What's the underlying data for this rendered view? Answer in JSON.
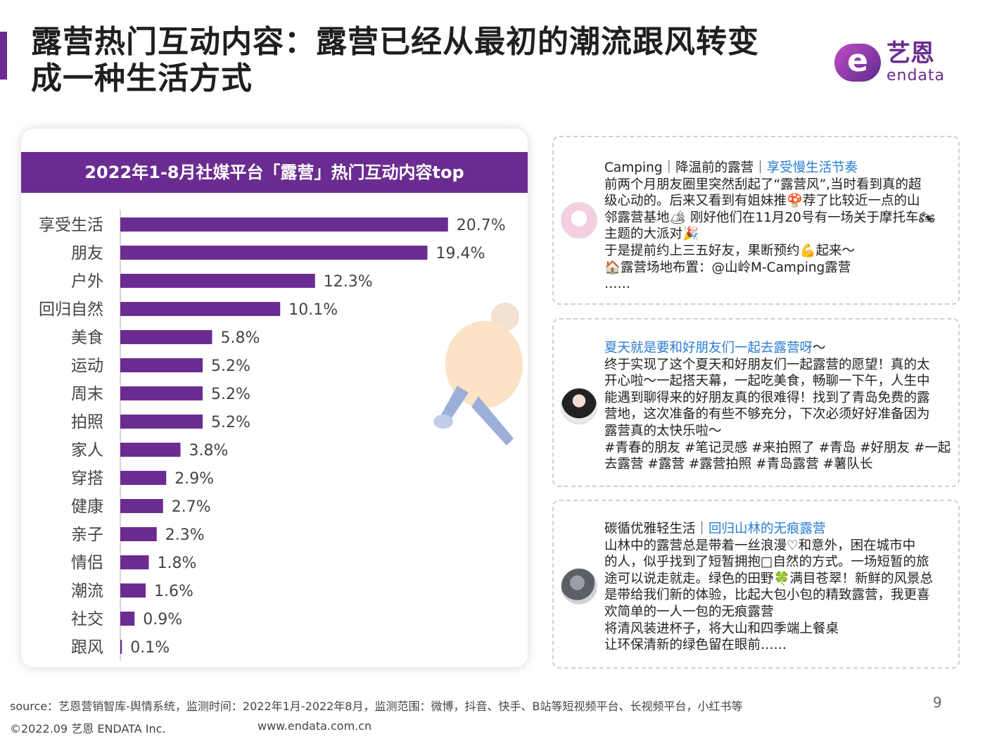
{
  "page": {
    "title_lines": [
      "露营热门互动内容：露营已经从最初的潮流跟风转变",
      "成一种生活方式"
    ],
    "logo": {
      "cn": "艺恩",
      "en": "endata",
      "mark": "e"
    },
    "page_number": "9"
  },
  "colors": {
    "accent": "#6b2c91",
    "bar": "#6b2c91",
    "link": "#2a7dd1"
  },
  "chart_data": {
    "type": "bar",
    "orientation": "horizontal",
    "title": "2022年1-8月社媒平台「露营」热门互动内容top",
    "categories": [
      "享受生活",
      "朋友",
      "户外",
      "回归自然",
      "美食",
      "运动",
      "周末",
      "拍照",
      "家人",
      "穿搭",
      "健康",
      "亲子",
      "情侣",
      "潮流",
      "社交",
      "跟风"
    ],
    "values": [
      20.7,
      19.4,
      12.3,
      10.1,
      5.8,
      5.2,
      5.2,
      5.2,
      3.8,
      2.9,
      2.7,
      2.3,
      1.8,
      1.6,
      0.9,
      0.1
    ],
    "value_labels": [
      "20.7%",
      "19.4%",
      "12.3%",
      "10.1%",
      "5.8%",
      "5.2%",
      "5.2%",
      "5.2%",
      "3.8%",
      "2.9%",
      "2.7%",
      "2.3%",
      "1.8%",
      "1.6%",
      "0.9%",
      "0.1%"
    ],
    "unit": "%",
    "xlim": [
      0,
      22
    ],
    "grid": false,
    "legend": "none"
  },
  "posts": [
    {
      "lines": [
        [
          {
            "t": "Camping｜降温前的露营｜"
          },
          {
            "t": "享受慢生活节奏",
            "link": true
          }
        ],
        [
          {
            "t": "前两个月朋友圈里突然刮起了“露营风”,当时看到真的超"
          }
        ],
        [
          {
            "t": "级心动的。后来又看到有姐妹推🍄荐了比较近一点的山"
          }
        ],
        [
          {
            "t": "邻露营基地🏕 刚好他们在11月20号有一场关于摩托车🏍"
          }
        ],
        [
          {
            "t": "主题的大派对🎉"
          }
        ],
        [
          {
            "t": "于是提前约上三五好友，果断预约💪起来～"
          }
        ],
        [
          {
            "t": "🏠露营场地布置：@山岭M-Camping露营"
          }
        ],
        [
          {
            "t": "……"
          }
        ]
      ]
    },
    {
      "lines": [
        [
          {
            "t": "夏天就是要和好朋友们一起去露营呀",
            "link": true
          },
          {
            "t": "～"
          }
        ],
        [
          {
            "t": "终于实现了这个夏天和好朋友们一起露营的愿望！真的太"
          }
        ],
        [
          {
            "t": "开心啦～一起搭天幕，一起吃美食，畅聊一下午，人生中"
          }
        ],
        [
          {
            "t": "能遇到聊得来的好朋友真的很难得！找到了青岛免费的露"
          }
        ],
        [
          {
            "t": "营地，这次准备的有些不够充分，下次必须好好准备因为"
          }
        ],
        [
          {
            "t": "露营真的太快乐啦～"
          }
        ],
        [
          {
            "t": "#青春的朋友 #笔记灵感 #来拍照了 #青岛 #好朋友 #一起"
          }
        ],
        [
          {
            "t": "去露营 #露营 #露营拍照 #青岛露营 #薯队长"
          }
        ]
      ]
    },
    {
      "lines": [
        [
          {
            "t": "碳循优雅轻生活｜"
          },
          {
            "t": "回归山林的无痕露营",
            "link": true
          }
        ],
        [
          {
            "t": "山林中的露营总是带着一丝浪漫♡和意外，困在城市中"
          }
        ],
        [
          {
            "t": "的人，似乎找到了短暂拥抱□自然的方式。一场短暂的旅"
          }
        ],
        [
          {
            "t": "途可以说走就走。绿色的田野🍀满目苍翠！新鲜的风景总"
          }
        ],
        [
          {
            "t": "是带给我们新的体验，比起大包小包的精致露营，我更喜"
          }
        ],
        [
          {
            "t": "欢简单的一人一包的无痕露营"
          }
        ],
        [
          {
            "t": "将清风装进杯子，将大山和四季端上餐桌"
          }
        ],
        [
          {
            "t": "让环保清新的绿色留在眼前……"
          }
        ]
      ]
    }
  ],
  "footer": {
    "source": "source：艺恩营销智库-舆情系统，监测时间：2022年1月-2022年8月，监测范围：微博，抖音、快手、B站等短视频平台、长视频平台，小红书等",
    "copyright": "©2022.09 艺恩 ENDATA Inc.",
    "url": "www.endata.com.cn"
  }
}
